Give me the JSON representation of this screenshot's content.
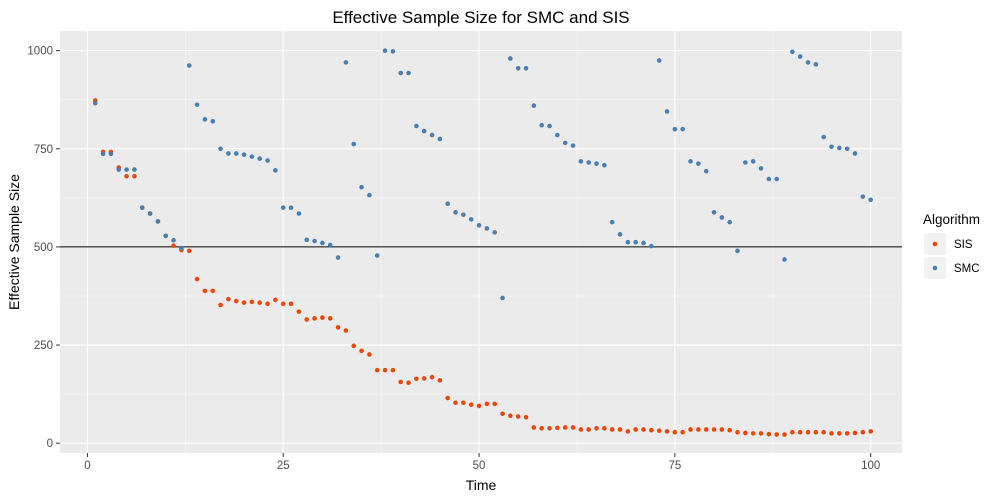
{
  "chart_data": {
    "type": "scatter",
    "title": "Effective Sample Size for SMC and SIS",
    "xlabel": "Time",
    "ylabel": "Effective Sample Size",
    "xlim": [
      -3.5,
      104
    ],
    "ylim": [
      -25,
      1050
    ],
    "xticks": [
      0,
      25,
      50,
      75,
      100
    ],
    "yticks": [
      0,
      250,
      500,
      750,
      1000
    ],
    "grid": true,
    "background": "#ebebeb",
    "legend": {
      "title": "Algorithm",
      "position": "right"
    },
    "hline": 500,
    "x": [
      1,
      2,
      3,
      4,
      5,
      6,
      7,
      8,
      9,
      10,
      11,
      12,
      13,
      14,
      15,
      16,
      17,
      18,
      19,
      20,
      21,
      22,
      23,
      24,
      25,
      26,
      27,
      28,
      29,
      30,
      31,
      32,
      33,
      34,
      35,
      36,
      37,
      38,
      39,
      40,
      41,
      42,
      43,
      44,
      45,
      46,
      47,
      48,
      49,
      50,
      51,
      52,
      53,
      54,
      55,
      56,
      57,
      58,
      59,
      60,
      61,
      62,
      63,
      64,
      65,
      66,
      67,
      68,
      69,
      70,
      71,
      72,
      73,
      74,
      75,
      76,
      77,
      78,
      79,
      80,
      81,
      82,
      83,
      84,
      85,
      86,
      87,
      88,
      89,
      90,
      91,
      92,
      93,
      94,
      95,
      96,
      97,
      98,
      99,
      100
    ],
    "series": [
      {
        "name": "SIS",
        "color": "#e8480c",
        "values": [
          873,
          742,
          742,
          702,
          680,
          680,
          600,
          585,
          565,
          528,
          503,
          492,
          490,
          418,
          388,
          388,
          352,
          367,
          362,
          358,
          360,
          358,
          355,
          365,
          355,
          355,
          335,
          315,
          318,
          320,
          318,
          295,
          287,
          248,
          235,
          226,
          186,
          186,
          186,
          156,
          154,
          164,
          165,
          168,
          160,
          115,
          103,
          103,
          98,
          95,
          100,
          100,
          75,
          70,
          68,
          66,
          40,
          38,
          38,
          39,
          40,
          40,
          35,
          35,
          38,
          38,
          35,
          35,
          30,
          35,
          35,
          33,
          32,
          30,
          28,
          28,
          35,
          35,
          35,
          35,
          35,
          33,
          28,
          26,
          25,
          25,
          23,
          22,
          22,
          28,
          28,
          28,
          28,
          28,
          25,
          25,
          25,
          26,
          28,
          30
        ]
      },
      {
        "name": "SMC",
        "color": "#4a7fb0",
        "values": [
          866,
          737,
          737,
          697,
          697,
          697,
          600,
          585,
          565,
          528,
          517,
          497,
          962,
          862,
          825,
          820,
          750,
          738,
          738,
          735,
          730,
          725,
          720,
          695,
          600,
          600,
          585,
          518,
          515,
          510,
          505,
          473,
          970,
          762,
          652,
          632,
          478,
          1000,
          998,
          943,
          943,
          808,
          795,
          785,
          775,
          610,
          588,
          582,
          570,
          555,
          547,
          537,
          370,
          980,
          955,
          955,
          860,
          810,
          808,
          785,
          765,
          758,
          718,
          715,
          712,
          708,
          563,
          532,
          512,
          512,
          510,
          502,
          975,
          845,
          800,
          800,
          718,
          712,
          693,
          588,
          575,
          563,
          490,
          715,
          718,
          700,
          673,
          673,
          468,
          997,
          985,
          970,
          965,
          780,
          755,
          752,
          750,
          738,
          628,
          620
        ]
      }
    ]
  }
}
